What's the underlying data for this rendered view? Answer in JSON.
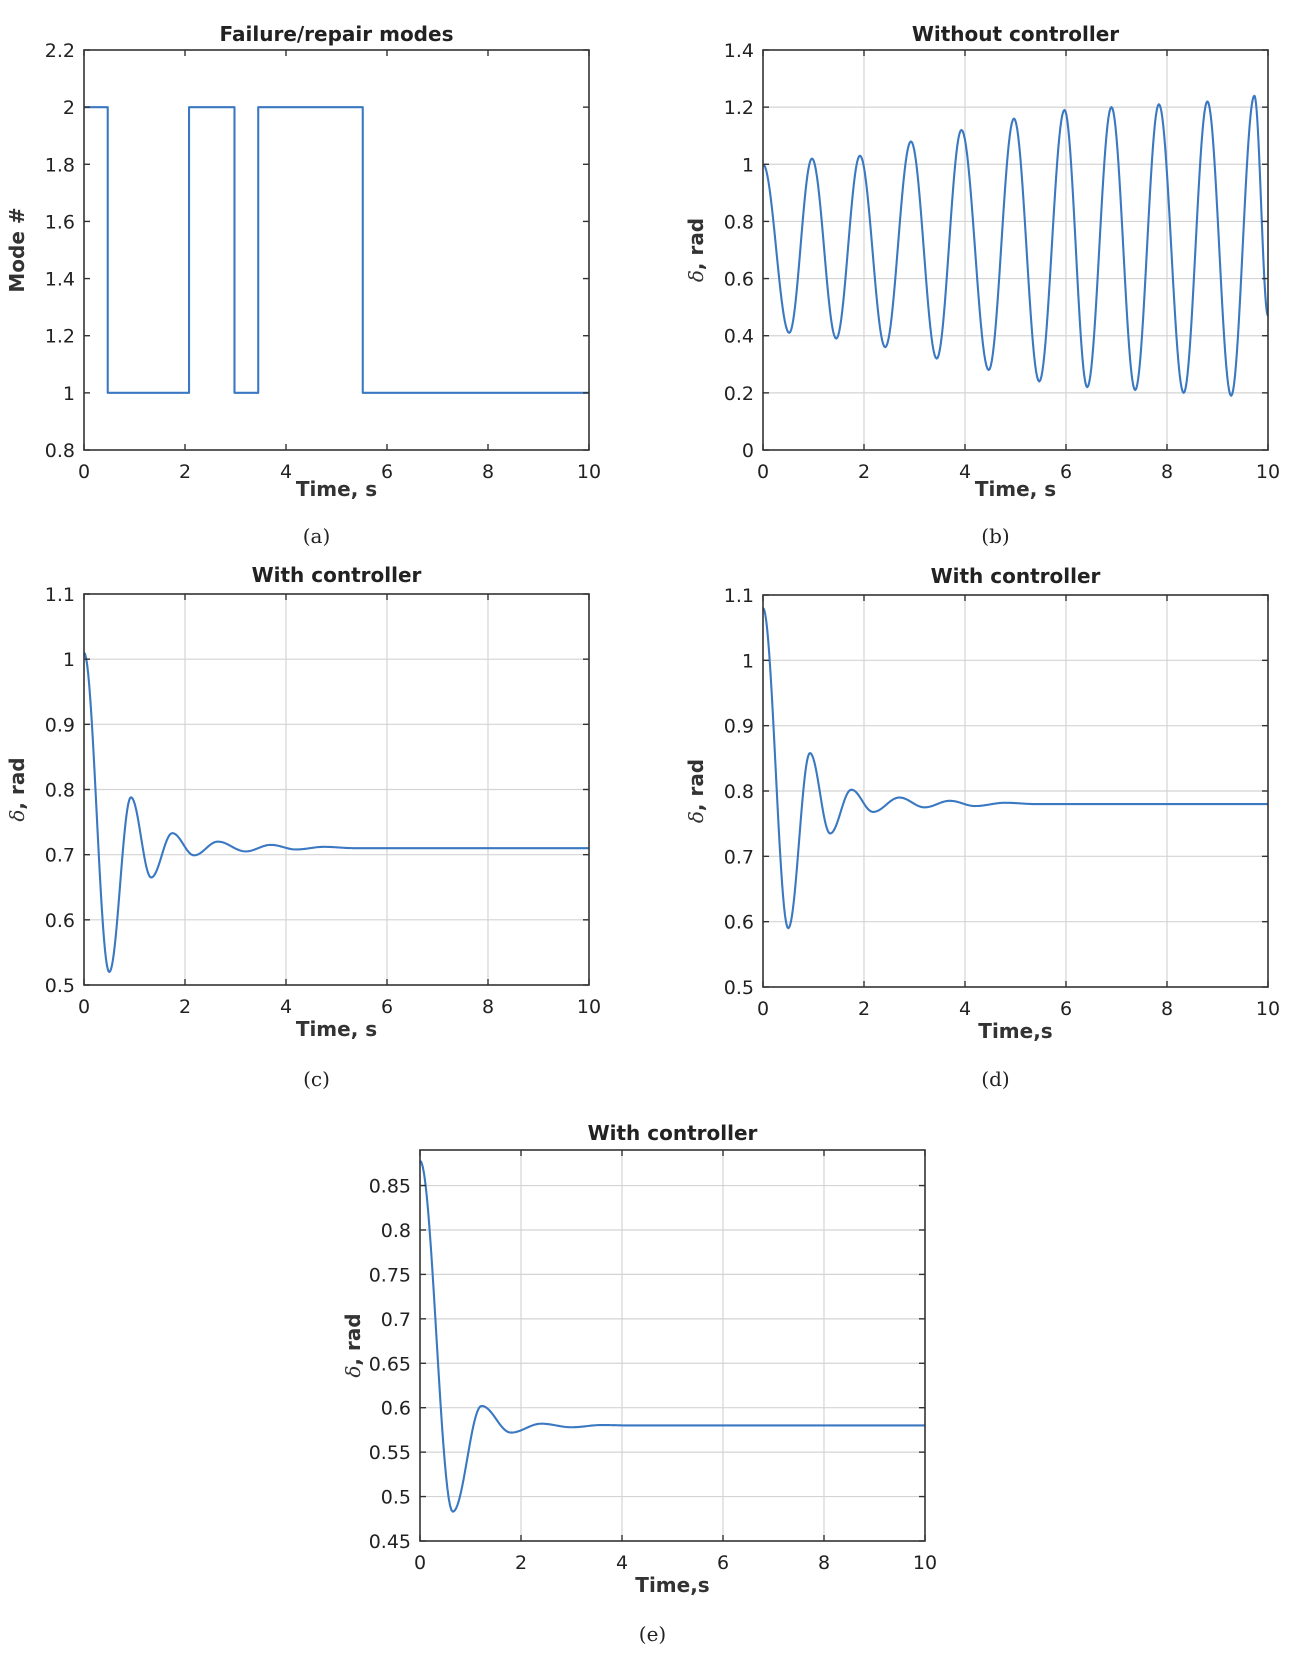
{
  "colors": {
    "series": "#3a78c2",
    "grid": "#d4d4d4",
    "axis": "#333333"
  },
  "chart_data": [
    {
      "id": "a",
      "caption": "(a)",
      "type": "line",
      "title": "Failure/repair modes",
      "xlabel": "Time, s",
      "ylabel": "Mode #",
      "ylabel_has_delta": false,
      "grid": false,
      "xlim": [
        0,
        10
      ],
      "ylim": [
        0.8,
        2.2
      ],
      "x_ticks": [
        0,
        2,
        4,
        6,
        8,
        10
      ],
      "y_ticks": [
        "0.8",
        "1",
        "1.2",
        "1.4",
        "1.6",
        "1.8",
        "2",
        "2.2"
      ],
      "series": [
        {
          "kind": "step",
          "points": [
            [
              0,
              2
            ],
            [
              0.47,
              2
            ],
            [
              0.47,
              1
            ],
            [
              2.08,
              1
            ],
            [
              2.08,
              2
            ],
            [
              2.98,
              2
            ],
            [
              2.98,
              1
            ],
            [
              3.45,
              1
            ],
            [
              3.45,
              2
            ],
            [
              5.52,
              2
            ],
            [
              5.52,
              1
            ],
            [
              10,
              1
            ]
          ]
        }
      ]
    },
    {
      "id": "b",
      "caption": "(b)",
      "type": "line",
      "title": "Without controller",
      "xlabel": "Time, s",
      "ylabel": ", rad",
      "ylabel_has_delta": true,
      "grid": true,
      "xlim": [
        0,
        10
      ],
      "ylim": [
        0,
        1.4
      ],
      "x_ticks": [
        0,
        2,
        4,
        6,
        8,
        10
      ],
      "y_ticks": [
        "0",
        "0.2",
        "0.4",
        "0.6",
        "0.8",
        "1",
        "1.2",
        "1.4"
      ],
      "series": [
        {
          "kind": "oscillation",
          "start": [
            0,
            1.0
          ],
          "maxima": [
            [
              0.97,
              1.02
            ],
            [
              1.92,
              1.03
            ],
            [
              2.93,
              1.08
            ],
            [
              3.93,
              1.12
            ],
            [
              4.97,
              1.16
            ],
            [
              5.97,
              1.19
            ],
            [
              6.9,
              1.2
            ],
            [
              7.84,
              1.21
            ],
            [
              8.8,
              1.22
            ],
            [
              9.73,
              1.24
            ]
          ],
          "minima": [
            [
              0.52,
              0.41
            ],
            [
              1.45,
              0.39
            ],
            [
              2.42,
              0.36
            ],
            [
              3.44,
              0.32
            ],
            [
              4.47,
              0.28
            ],
            [
              5.47,
              0.24
            ],
            [
              6.42,
              0.22
            ],
            [
              7.37,
              0.21
            ],
            [
              8.33,
              0.2
            ],
            [
              9.27,
              0.19
            ]
          ],
          "end": [
            10,
            0.47
          ]
        }
      ]
    },
    {
      "id": "c",
      "caption": "(c)",
      "type": "line",
      "title": "With controller",
      "xlabel": "Time, s",
      "ylabel": ", rad",
      "ylabel_has_delta": true,
      "grid": true,
      "xlim": [
        0,
        10
      ],
      "ylim": [
        0.5,
        1.1
      ],
      "x_ticks": [
        0,
        2,
        4,
        6,
        8,
        10
      ],
      "y_ticks": [
        "0.5",
        "0.6",
        "0.7",
        "0.8",
        "0.9",
        "1",
        "1.1"
      ],
      "series": [
        {
          "kind": "damped",
          "x0": 0,
          "y0": 1.01,
          "steady": 0.71,
          "extrema": [
            [
              0.5,
              0.52
            ],
            [
              0.93,
              0.788
            ],
            [
              1.33,
              0.665
            ],
            [
              1.75,
              0.733
            ],
            [
              2.18,
              0.699
            ],
            [
              2.65,
              0.72
            ],
            [
              3.2,
              0.705
            ],
            [
              3.7,
              0.715
            ],
            [
              4.2,
              0.708
            ],
            [
              4.75,
              0.712
            ]
          ]
        }
      ]
    },
    {
      "id": "d",
      "caption": "(d)",
      "type": "line",
      "title": "With controller",
      "xlabel": "Time,s",
      "ylabel": ", rad",
      "ylabel_has_delta": true,
      "grid": true,
      "xlim": [
        0,
        10
      ],
      "ylim": [
        0.5,
        1.1
      ],
      "x_ticks": [
        0,
        2,
        4,
        6,
        8,
        10
      ],
      "y_ticks": [
        "0.5",
        "0.6",
        "0.7",
        "0.8",
        "0.9",
        "1",
        "1.1"
      ],
      "series": [
        {
          "kind": "damped",
          "x0": 0,
          "y0": 1.08,
          "steady": 0.78,
          "extrema": [
            [
              0.5,
              0.59
            ],
            [
              0.93,
              0.858
            ],
            [
              1.33,
              0.735
            ],
            [
              1.75,
              0.802
            ],
            [
              2.18,
              0.768
            ],
            [
              2.7,
              0.79
            ],
            [
              3.2,
              0.775
            ],
            [
              3.7,
              0.785
            ],
            [
              4.2,
              0.777
            ],
            [
              4.8,
              0.782
            ]
          ]
        }
      ]
    },
    {
      "id": "e",
      "caption": "(e)",
      "type": "line",
      "title": "With controller",
      "xlabel": "Time,s",
      "ylabel": ", rad",
      "ylabel_has_delta": true,
      "grid": true,
      "xlim": [
        0,
        10
      ],
      "ylim": [
        0.45,
        0.89
      ],
      "x_ticks": [
        0,
        2,
        4,
        6,
        8,
        10
      ],
      "y_ticks": [
        "0.45",
        "0.5",
        "0.55",
        "0.6",
        "0.65",
        "0.7",
        "0.75",
        "0.8",
        "0.85"
      ],
      "series": [
        {
          "kind": "damped",
          "x0": 0,
          "y0": 0.878,
          "steady": 0.58,
          "extrema": [
            [
              0.65,
              0.483
            ],
            [
              1.22,
              0.602
            ],
            [
              1.8,
              0.572
            ],
            [
              2.4,
              0.582
            ],
            [
              3.0,
              0.578
            ],
            [
              3.6,
              0.5805
            ]
          ]
        }
      ]
    }
  ]
}
